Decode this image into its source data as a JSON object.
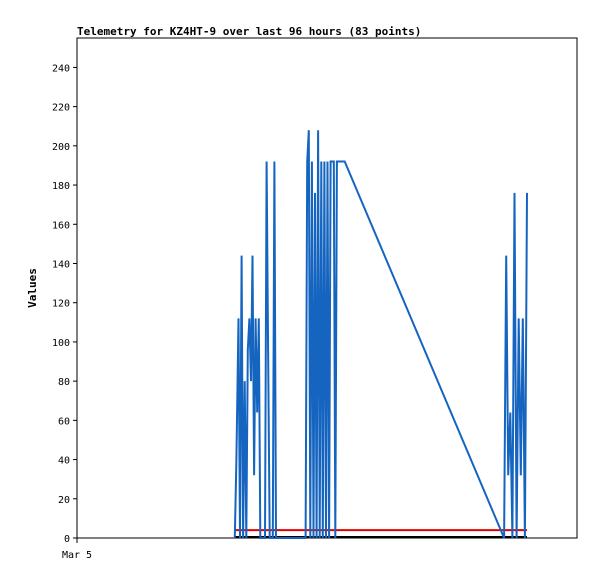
{
  "chart_data": {
    "type": "line",
    "title": "Telemetry for KZ4HT-9 over last 96 hours (83 points)",
    "xlabel": "",
    "ylabel": "Values",
    "ylim": [
      0,
      255
    ],
    "yticks": [
      0,
      20,
      40,
      60,
      80,
      100,
      120,
      140,
      160,
      180,
      200,
      220,
      240
    ],
    "xtick_labels": [
      "Mar 5"
    ],
    "grid": false,
    "colors": {
      "series": "#1565c0",
      "threshold": "#e00000",
      "baseline": "#000000"
    },
    "series": [
      {
        "x": [
          30.3,
          30.6,
          31.0,
          31.3,
          31.6,
          31.9,
          32.2,
          32.5,
          32.8,
          33.1,
          33.4,
          33.7,
          34.0,
          34.3,
          34.6,
          34.9,
          35.2,
          35.5,
          35.8,
          36.1,
          36.4,
          36.7,
          37.0,
          37.3,
          37.6,
          37.9,
          38.2,
          38.5,
          38.8,
          39.1,
          39.4,
          39.7,
          40.0,
          40.3,
          40.6,
          40.9,
          41.2,
          41.5,
          41.8,
          42.1,
          42.4,
          42.7,
          43.0,
          43.3,
          43.6,
          43.9,
          44.2,
          44.5,
          44.8,
          45.1,
          45.4,
          45.7,
          46.0,
          46.3,
          46.6,
          46.9,
          47.2,
          47.5,
          47.8,
          48.1,
          48.4,
          48.7,
          49.0,
          49.3,
          49.6,
          49.9,
          50.2,
          50.5,
          50.8,
          51.1,
          51.4,
          82.0,
          82.4,
          82.8,
          83.2,
          83.6,
          84.0,
          84.4,
          84.8,
          85.2,
          85.6,
          86.0,
          86.4
        ],
        "values": [
          0,
          40,
          112,
          0,
          144,
          0,
          80,
          0,
          96,
          112,
          80,
          144,
          32,
          112,
          64,
          112,
          0,
          0,
          0,
          0,
          192,
          96,
          0,
          0,
          0,
          192,
          0,
          0,
          0,
          0,
          0,
          0,
          0,
          0,
          0,
          0,
          0,
          0,
          0,
          0,
          0,
          0,
          0,
          0,
          0,
          0,
          192,
          208,
          0,
          192,
          0,
          176,
          0,
          208,
          0,
          192,
          0,
          192,
          0,
          192,
          0,
          192,
          192,
          192,
          0,
          192,
          192,
          192,
          192,
          192,
          192,
          0,
          144,
          32,
          64,
          0,
          176,
          0,
          112,
          32,
          112,
          0,
          176
        ]
      }
    ],
    "reference_lines": [
      {
        "y": 4
      },
      {
        "y": 0.5
      }
    ]
  }
}
